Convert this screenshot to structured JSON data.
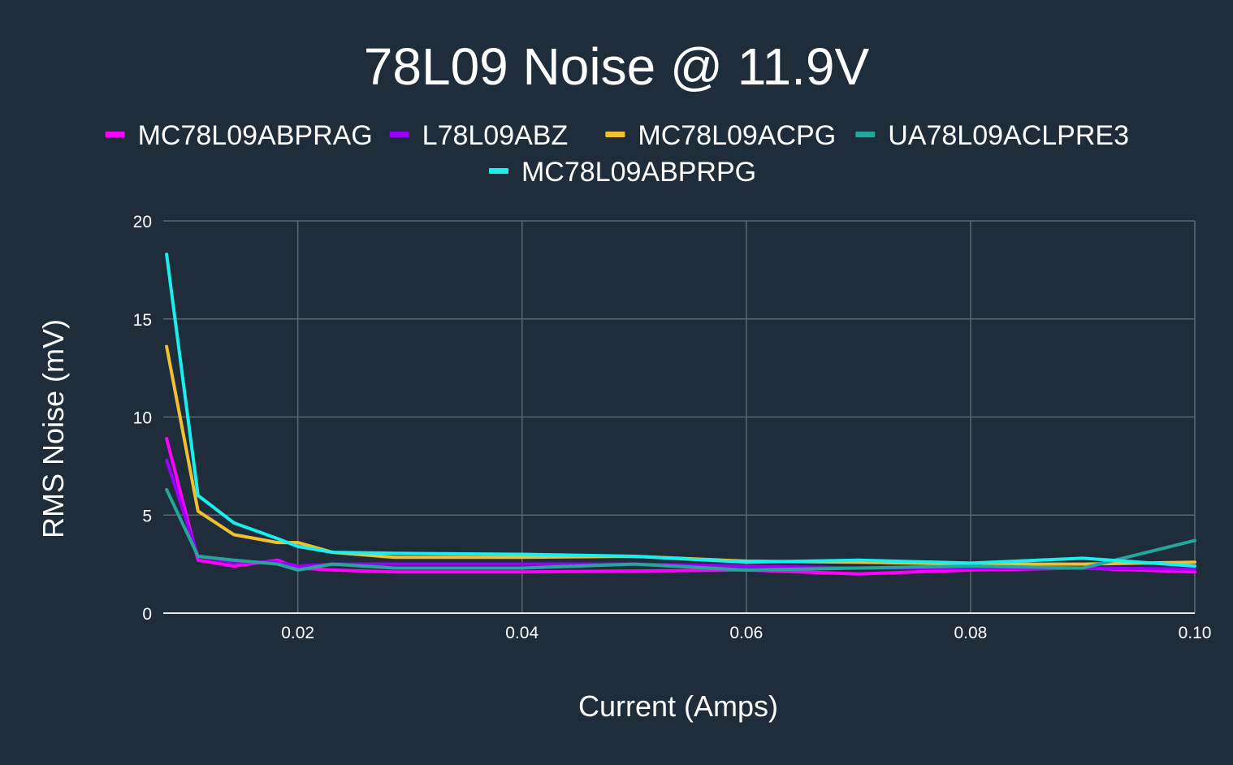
{
  "chart_data": {
    "type": "line",
    "title": "78L09 Noise @ 11.9V",
    "xlabel": "Current (Amps)",
    "ylabel": "RMS Noise (mV)",
    "xlim": [
      0.008,
      0.1
    ],
    "ylim": [
      0,
      20
    ],
    "x_ticks": [
      0.02,
      0.04,
      0.06,
      0.08,
      0.1
    ],
    "x_tick_labels": [
      "0.02",
      "0.04",
      "0.06",
      "0.08",
      "0.10"
    ],
    "y_ticks": [
      0,
      5,
      10,
      15,
      20
    ],
    "y_tick_labels": [
      "0",
      "5",
      "10",
      "15",
      "20"
    ],
    "grid": true,
    "legend_position": "top",
    "colors": {
      "background": "#1f2d3a",
      "grid": "#5d6873",
      "axis": "#e6e6e6",
      "text": "#ffffff"
    },
    "series": [
      {
        "name": "MC78L09ABPRAG",
        "color": "#ff00ff",
        "x": [
          0.0083,
          0.0111,
          0.0143,
          0.0182,
          0.02,
          0.0231,
          0.0286,
          0.04,
          0.05,
          0.06,
          0.07,
          0.08,
          0.09,
          0.1
        ],
        "y": [
          8.9,
          2.7,
          2.4,
          2.7,
          2.3,
          2.2,
          2.1,
          2.1,
          2.15,
          2.2,
          2.0,
          2.2,
          2.3,
          2.1
        ]
      },
      {
        "name": "L78L09ABZ",
        "color": "#9b00ff",
        "x": [
          0.0083,
          0.0111,
          0.0143,
          0.0182,
          0.02,
          0.0231,
          0.0286,
          0.04,
          0.05,
          0.06,
          0.07,
          0.08,
          0.09,
          0.1
        ],
        "y": [
          7.8,
          2.9,
          2.6,
          2.6,
          2.4,
          2.5,
          2.5,
          2.5,
          2.5,
          2.4,
          2.3,
          2.3,
          2.3,
          2.25
        ]
      },
      {
        "name": "MC78L09ACPG",
        "color": "#f0c030",
        "x": [
          0.0083,
          0.0111,
          0.0143,
          0.0182,
          0.02,
          0.0231,
          0.0286,
          0.04,
          0.05,
          0.06,
          0.07,
          0.08,
          0.09,
          0.1
        ],
        "y": [
          13.6,
          5.2,
          4.0,
          3.6,
          3.6,
          3.1,
          2.85,
          2.85,
          2.9,
          2.65,
          2.6,
          2.5,
          2.5,
          2.6
        ]
      },
      {
        "name": "UA78L09ACLPRE3",
        "color": "#26a69a",
        "x": [
          0.0083,
          0.0111,
          0.0143,
          0.0182,
          0.02,
          0.0231,
          0.0286,
          0.04,
          0.05,
          0.06,
          0.07,
          0.08,
          0.09,
          0.1
        ],
        "y": [
          6.3,
          2.9,
          2.7,
          2.5,
          2.2,
          2.5,
          2.3,
          2.3,
          2.5,
          2.2,
          2.3,
          2.4,
          2.3,
          3.7
        ]
      },
      {
        "name": "MC78L09ABPRPG",
        "color": "#18f0f0",
        "x": [
          0.0083,
          0.0111,
          0.0143,
          0.0182,
          0.02,
          0.0231,
          0.0286,
          0.04,
          0.05,
          0.06,
          0.07,
          0.08,
          0.09,
          0.1
        ],
        "y": [
          18.3,
          6.0,
          4.6,
          3.8,
          3.4,
          3.1,
          3.05,
          3.0,
          2.9,
          2.6,
          2.7,
          2.55,
          2.8,
          2.4
        ]
      }
    ]
  }
}
